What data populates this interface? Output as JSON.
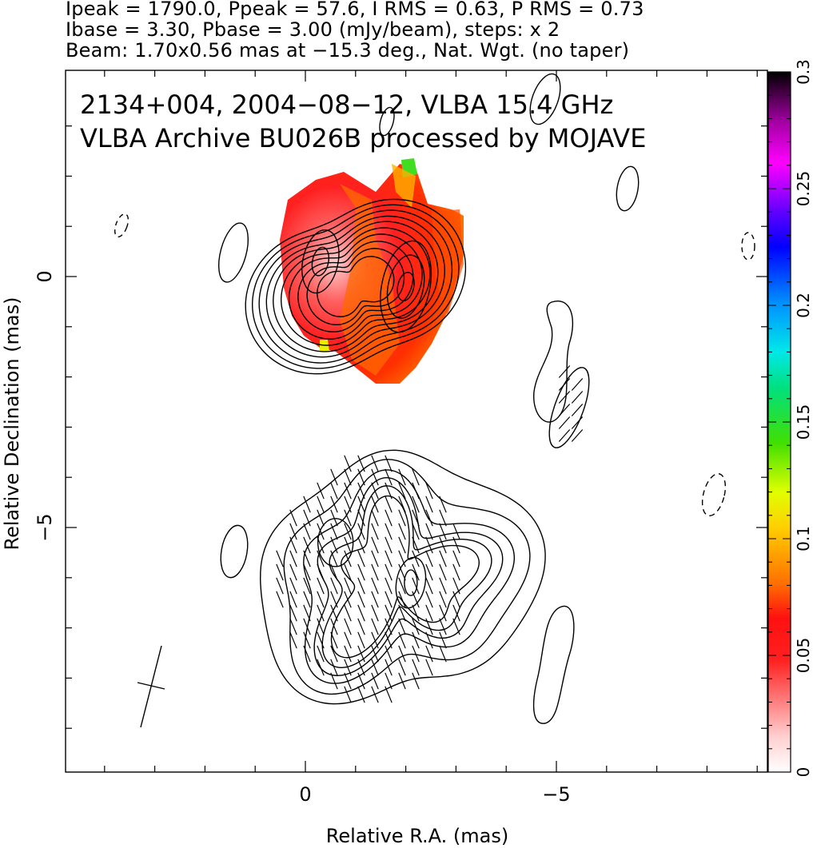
{
  "header": {
    "line1": "Ipeak = 1790.0, Ppeak = 57.6, I RMS = 0.63, P RMS = 0.73",
    "line2": "Ibase = 3.30, Pbase = 3.00 (mJy/beam), steps: x 2",
    "line3": "Beam: 1.70x0.56 mas at −15.3 deg., Nat. Wgt. (no taper)"
  },
  "annotation": {
    "line1": "2134+004, 2004−08−12, VLBA 15.4 GHz",
    "line2": "VLBA Archive BU026B processed by MOJAVE"
  },
  "chart_data": {
    "type": "heatmap",
    "xlabel": "Relative R.A. (mas)",
    "ylabel": "Relative Declination (mas)",
    "xlim": [
      4.7,
      -9.2
    ],
    "ylim": [
      -9.9,
      4.1
    ],
    "x_ticks": [
      {
        "value": 0,
        "label": "0"
      },
      {
        "value": -5,
        "label": "−5"
      }
    ],
    "y_ticks": [
      {
        "value": 0,
        "label": "0"
      },
      {
        "value": -5,
        "label": "−5"
      }
    ],
    "colorbar": {
      "range": [
        0,
        0.3
      ],
      "ticks": [
        {
          "value": 0,
          "label": "0"
        },
        {
          "value": 0.05,
          "label": "0.05"
        },
        {
          "value": 0.1,
          "label": "0.1"
        },
        {
          "value": 0.15,
          "label": "0.15"
        },
        {
          "value": 0.2,
          "label": "0.2"
        },
        {
          "value": 0.25,
          "label": "0.25"
        },
        {
          "value": 0.3,
          "label": "0.3"
        }
      ],
      "colormap": [
        "#ffffff",
        "#ffb0b0",
        "#ff3030",
        "#ff1010",
        "#ff8000",
        "#ffff00",
        "#00e000",
        "#00e0e0",
        "#0060ff",
        "#0000ff",
        "#ff00ff",
        "#800080",
        "#000000"
      ]
    },
    "northern_component": {
      "center": [
        -1.0,
        -0.2
      ],
      "contours": 10,
      "peaks": [
        [
          -0.3,
          0.3
        ],
        [
          -2.0,
          -0.2
        ]
      ]
    },
    "southern_component": {
      "center": [
        -1.8,
        -6.0
      ],
      "contours": 6
    },
    "beam": {
      "center": [
        3.2,
        -8.0
      ],
      "major_mas": 1.7,
      "minor_mas": 0.56,
      "pa_deg": -15.3
    }
  }
}
